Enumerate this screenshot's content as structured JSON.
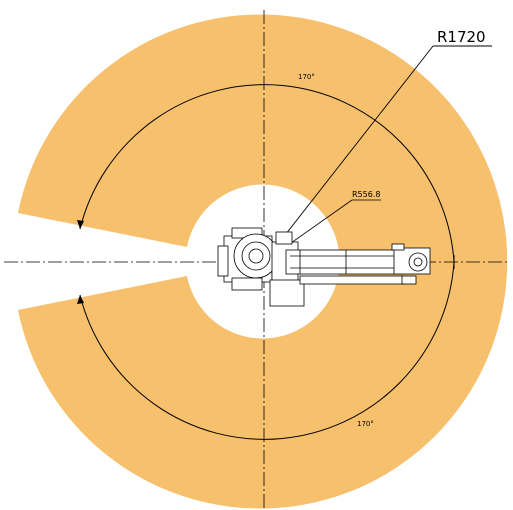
{
  "diagram": {
    "outer_radius_label": "R1720",
    "inner_radius_label": "R556.8",
    "angle_upper_label": "170°",
    "angle_lower_label": "170°",
    "colors": {
      "work_area": "#F6C06C",
      "background": "#FFFFFF",
      "linework": "#000000"
    }
  }
}
